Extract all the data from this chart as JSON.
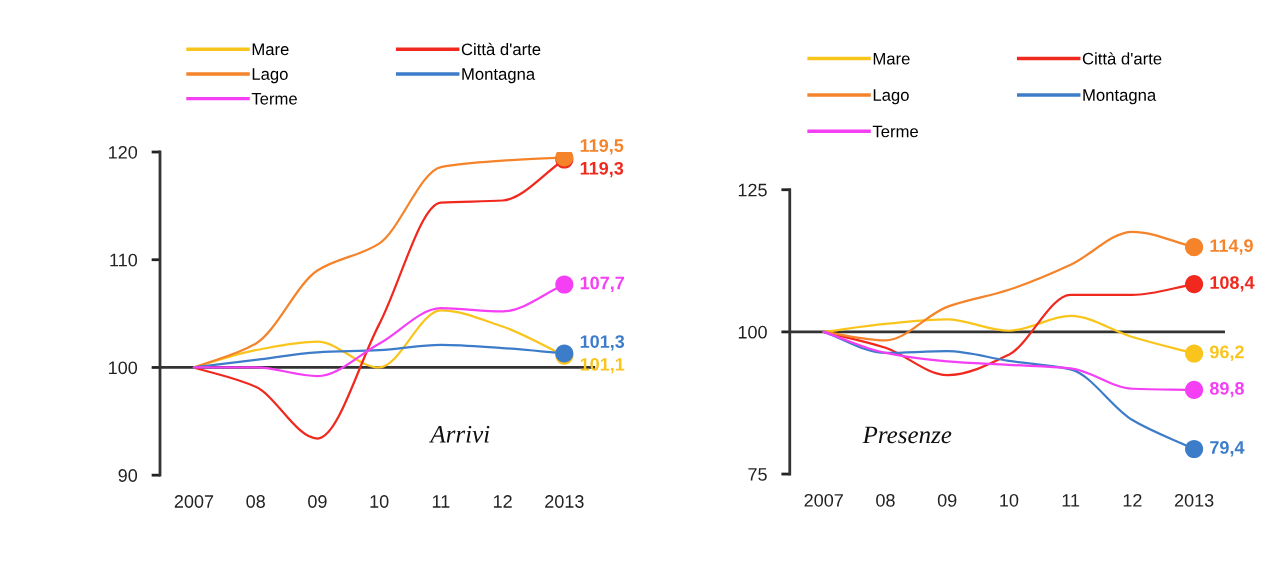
{
  "chart_data": [
    {
      "type": "line",
      "annotations": [
        "Arrivi"
      ],
      "categories": [
        "2007",
        "08",
        "09",
        "10",
        "11",
        "12",
        "2013"
      ],
      "series": [
        {
          "name": "Mare",
          "color": "#f9c51c",
          "values": [
            100,
            101.6,
            102.4,
            100,
            105.3,
            103.8,
            101.1
          ],
          "value_labels": [
            null,
            null,
            null,
            null,
            null,
            null,
            "101,1"
          ]
        },
        {
          "name": "Città d'arte",
          "color": "#f0281e",
          "values": [
            100,
            98.2,
            93.4,
            104,
            115.3,
            115.5,
            119.3
          ],
          "value_labels": [
            null,
            null,
            null,
            null,
            null,
            null,
            "119,3"
          ]
        },
        {
          "name": "Lago",
          "color": "#f5832a",
          "values": [
            100,
            102.2,
            109,
            111.5,
            118.6,
            119.2,
            119.5
          ],
          "value_labels": [
            null,
            null,
            null,
            null,
            null,
            null,
            "119,5"
          ]
        },
        {
          "name": "Montagna",
          "color": "#3d7cc9",
          "values": [
            100,
            100.7,
            101.4,
            101.6,
            102.1,
            101.8,
            101.3
          ],
          "value_labels": [
            null,
            null,
            null,
            null,
            null,
            null,
            "101,3"
          ]
        },
        {
          "name": "Terme",
          "color": "#f53ff5",
          "values": [
            100,
            100,
            99.2,
            102.2,
            105.5,
            105.2,
            107.7
          ],
          "value_labels": [
            null,
            null,
            null,
            null,
            null,
            null,
            "107,7"
          ]
        }
      ],
      "ylim": [
        90,
        120
      ],
      "yticks": [
        90,
        100,
        110,
        120
      ],
      "ref_lines": [
        {
          "axis": "y",
          "value": 100,
          "color": "#333333"
        }
      ],
      "legend": "top"
    },
    {
      "type": "line",
      "annotations": [
        "Presenze"
      ],
      "categories": [
        "2007",
        "08",
        "09",
        "10",
        "11",
        "12",
        "2013"
      ],
      "series": [
        {
          "name": "Mare",
          "color": "#f9c51c",
          "values": [
            100,
            101.4,
            102.2,
            100.2,
            102.8,
            99.1,
            96.2
          ],
          "value_labels": [
            null,
            null,
            null,
            null,
            null,
            null,
            "96,2"
          ]
        },
        {
          "name": "Città d'arte",
          "color": "#f0281e",
          "values": [
            100,
            97.2,
            92.4,
            96,
            106.5,
            106.5,
            108.4
          ],
          "value_labels": [
            null,
            null,
            null,
            null,
            null,
            null,
            "108,4"
          ]
        },
        {
          "name": "Lago",
          "color": "#f5832a",
          "values": [
            100,
            98.5,
            104.4,
            107.4,
            111.8,
            117.6,
            114.9
          ],
          "value_labels": [
            null,
            null,
            null,
            null,
            null,
            null,
            "114,9"
          ]
        },
        {
          "name": "Montagna",
          "color": "#3d7cc9",
          "values": [
            100,
            96.3,
            96.6,
            94.9,
            93.4,
            84.5,
            79.4
          ],
          "value_labels": [
            null,
            null,
            null,
            null,
            null,
            null,
            "79,4"
          ]
        },
        {
          "name": "Terme",
          "color": "#f53ff5",
          "values": [
            100,
            96.3,
            94.8,
            94.2,
            93.6,
            90,
            89.8
          ],
          "value_labels": [
            null,
            null,
            null,
            null,
            null,
            null,
            "89,8"
          ]
        }
      ],
      "ylim": [
        75,
        125
      ],
      "yticks": [
        75,
        100,
        125
      ],
      "ref_lines": [
        {
          "axis": "y",
          "value": 100,
          "color": "#333333"
        }
      ],
      "legend": "top"
    }
  ]
}
